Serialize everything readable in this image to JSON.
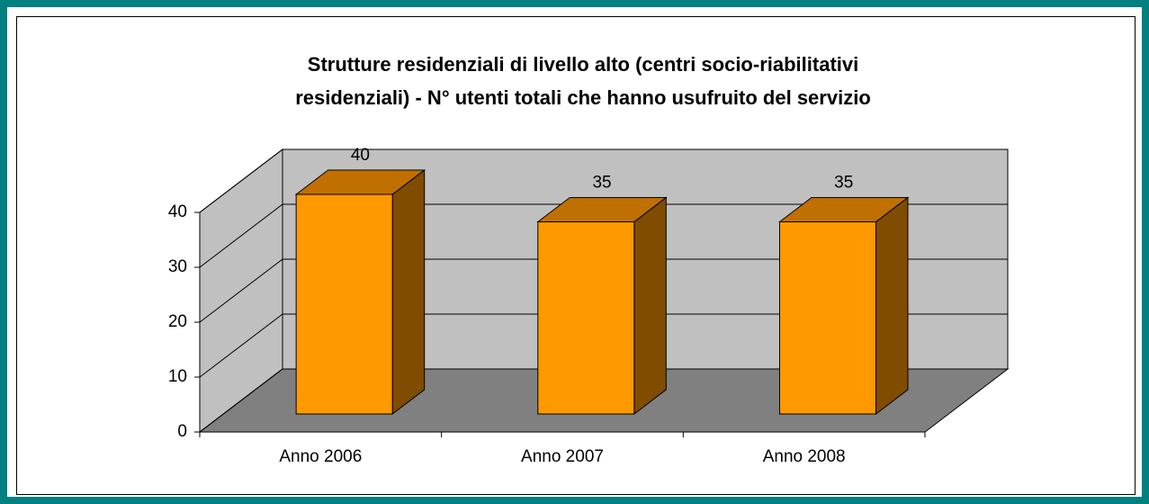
{
  "chart_data": {
    "type": "bar3d",
    "title": [
      "Strutture residenziali di livello alto (centri socio-riabilitativi",
      "residenziali) - N° utenti totali che hanno usufruito del servizio"
    ],
    "categories": [
      "Anno 2006",
      "Anno 2007",
      "Anno 2008"
    ],
    "values": [
      40,
      35,
      35
    ],
    "color": "#ff9900",
    "ylim": [
      0,
      40
    ],
    "yticks": [
      0,
      10,
      20,
      30,
      40
    ],
    "grid": true
  }
}
